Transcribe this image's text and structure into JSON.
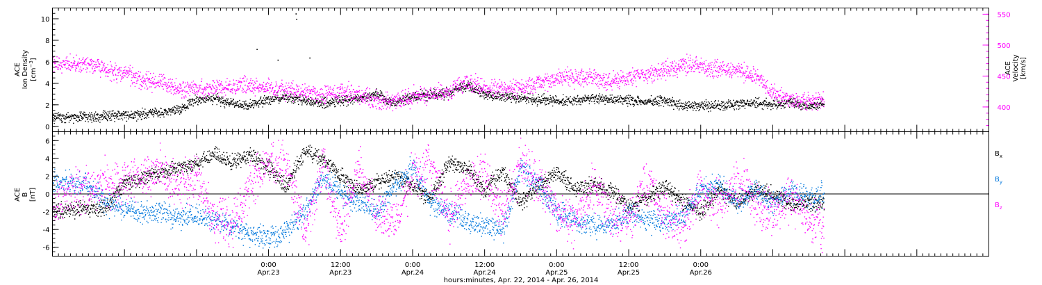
{
  "chart_data": [
    {
      "type": "scatter",
      "panel": "top",
      "y_left": {
        "label_lines": [
          "ACE",
          "Ion Density"
        ],
        "unit_base": "[cm",
        "unit_sup": "−3",
        "unit_end": "]",
        "lim": [
          -0.5,
          11
        ],
        "ticks": [
          0,
          2,
          4,
          6,
          8,
          10
        ],
        "minor_step": 0.5
      },
      "y_right": {
        "label_lines": [
          "ACE",
          "Velocity",
          "[km/s]"
        ],
        "lim": [
          360,
          560
        ],
        "ticks": [
          400,
          450,
          500,
          550
        ],
        "minor_step": 10,
        "color": "#ff00ff"
      },
      "series": [
        {
          "key": "density",
          "axis": "left",
          "color": "#000000",
          "x": [
            -36,
            -33,
            -30,
            -27,
            -24,
            -21,
            -18,
            -15,
            -12,
            -9,
            -6,
            -3,
            0,
            3,
            6,
            9,
            12,
            15,
            18,
            21,
            24,
            27,
            30,
            33,
            36,
            39,
            42,
            45,
            48,
            51,
            54,
            57,
            60,
            63,
            66,
            69,
            72,
            75,
            78,
            81,
            84,
            87,
            90,
            92.5
          ],
          "y": [
            0.9,
            0.9,
            0.9,
            1.0,
            1.1,
            1.2,
            1.3,
            1.6,
            2.5,
            2.6,
            2.1,
            2.0,
            2.5,
            2.7,
            2.4,
            2.2,
            2.4,
            2.6,
            3.0,
            2.2,
            2.8,
            3.0,
            3.1,
            3.9,
            3.0,
            2.8,
            2.7,
            2.5,
            2.4,
            2.5,
            2.6,
            2.6,
            2.5,
            2.3,
            2.4,
            2.0,
            2.0,
            1.9,
            2.1,
            2.2,
            2.1,
            2.3,
            1.8,
            2.2
          ],
          "spread": 0.45
        },
        {
          "key": "velocity",
          "axis": "right",
          "color": "#ff00ff",
          "x": [
            -36,
            -33,
            -30,
            -27,
            -24,
            -21,
            -18,
            -15,
            -12,
            -9,
            -6,
            -3,
            0,
            3,
            6,
            9,
            12,
            15,
            18,
            21,
            24,
            27,
            30,
            33,
            36,
            39,
            42,
            45,
            48,
            51,
            54,
            57,
            60,
            63,
            66,
            69,
            72,
            75,
            78,
            81,
            84,
            87,
            90,
            92.5
          ],
          "y": [
            472,
            470,
            470,
            460,
            455,
            445,
            440,
            430,
            430,
            432,
            434,
            435,
            432,
            428,
            424,
            420,
            425,
            418,
            412,
            410,
            418,
            422,
            425,
            440,
            430,
            430,
            430,
            440,
            445,
            448,
            448,
            440,
            450,
            452,
            460,
            470,
            468,
            462,
            462,
            450,
            425,
            412,
            410,
            412
          ],
          "spread": 14
        }
      ],
      "spikes": [
        {
          "x": 4.5,
          "y": 10.5
        },
        {
          "x": 4.6,
          "y": 10.0
        },
        {
          "x": 1.5,
          "y": 6.2
        },
        {
          "x": 6.8,
          "y": 6.4
        },
        {
          "x": -2.0,
          "y": 7.2
        }
      ]
    },
    {
      "type": "scatter",
      "panel": "bottom",
      "y_left": {
        "label_lines": [
          "ACE",
          "B"
        ],
        "unit": "[nT]",
        "lim": [
          -7,
          7
        ],
        "ticks": [
          -6,
          -4,
          -2,
          0,
          2,
          4,
          6
        ],
        "minor_step": 0.5,
        "zero_line": true
      },
      "legend": [
        {
          "base": "B",
          "sub": "x",
          "color": "#000000"
        },
        {
          "base": "B",
          "sub": "y",
          "color": "#0077dd"
        },
        {
          "base": "B",
          "sub": "z",
          "color": "#ff00ff"
        }
      ],
      "series": [
        {
          "key": "bx",
          "color": "#000000",
          "x": [
            -36,
            -33,
            -30,
            -27,
            -24,
            -21,
            -18,
            -15,
            -12,
            -9,
            -6,
            -3,
            0,
            3,
            6,
            9,
            12,
            15,
            18,
            21,
            24,
            27,
            30,
            33,
            36,
            39,
            42,
            45,
            48,
            51,
            54,
            57,
            60,
            63,
            66,
            69,
            72,
            75,
            78,
            81,
            84,
            87,
            90,
            92.5
          ],
          "y": [
            -2.0,
            -1.8,
            -1.6,
            -1.5,
            1.5,
            1.8,
            2.5,
            3.0,
            3.5,
            4.5,
            3.5,
            4.5,
            3.0,
            1.0,
            5.0,
            4.0,
            2.0,
            0.5,
            1.5,
            2.0,
            1.0,
            -0.5,
            3.5,
            3.0,
            0.5,
            2.5,
            -1.0,
            1.0,
            2.5,
            0.5,
            1.0,
            0.5,
            -1.5,
            -0.5,
            1.0,
            -1.0,
            -2.0,
            0.5,
            -1.0,
            0.5,
            0.0,
            -1.0,
            -1.0,
            -1.0
          ],
          "spread": 0.9
        },
        {
          "key": "by",
          "color": "#0077dd",
          "x": [
            -36,
            -33,
            -30,
            -27,
            -24,
            -21,
            -18,
            -15,
            -12,
            -9,
            -6,
            -3,
            0,
            3,
            6,
            9,
            12,
            15,
            18,
            21,
            24,
            27,
            30,
            33,
            36,
            39,
            42,
            45,
            48,
            51,
            54,
            57,
            60,
            63,
            66,
            69,
            72,
            75,
            78,
            81,
            84,
            87,
            90,
            92.5
          ],
          "y": [
            1.5,
            1.3,
            1.0,
            -1.0,
            -1.5,
            -2.0,
            -2.0,
            -2.5,
            -2.5,
            -3.0,
            -3.5,
            -4.5,
            -5.0,
            -4.0,
            -2.0,
            2.0,
            0.0,
            -1.0,
            -2.0,
            1.0,
            3.0,
            -1.0,
            -2.0,
            -3.0,
            -3.5,
            -4.0,
            3.0,
            1.0,
            -2.0,
            -3.0,
            -3.5,
            -3.5,
            -2.0,
            -3.0,
            -3.0,
            -2.5,
            0.5,
            1.0,
            -1.0,
            0.5,
            -1.0,
            0.5,
            -0.5,
            0.0
          ],
          "spread": 1.2
        },
        {
          "key": "bz",
          "color": "#ff00ff",
          "x": [
            -36,
            -33,
            -30,
            -27,
            -24,
            -21,
            -18,
            -15,
            -12,
            -9,
            -6,
            -3,
            0,
            3,
            6,
            9,
            12,
            15,
            18,
            21,
            24,
            27,
            30,
            33,
            36,
            39,
            42,
            45,
            48,
            51,
            54,
            57,
            60,
            63,
            66,
            69,
            72,
            75,
            78,
            81,
            84,
            87,
            90,
            92.5
          ],
          "y": [
            -1.0,
            0.5,
            1.0,
            1.2,
            1.5,
            2.0,
            2.5,
            1.0,
            2.0,
            -3.0,
            -3.5,
            1.0,
            4.0,
            3.0,
            -4.0,
            3.5,
            -4.0,
            3.0,
            -2.0,
            -3.5,
            2.0,
            3.0,
            -2.5,
            1.5,
            2.0,
            -2.0,
            3.5,
            1.5,
            -2.0,
            -3.5,
            1.0,
            -2.5,
            -3.0,
            1.5,
            -2.5,
            -3.5,
            0.5,
            -1.5,
            1.5,
            -1.0,
            -2.5,
            0.0,
            -3.0,
            -3.5
          ],
          "spread": 2.4
        }
      ]
    }
  ],
  "x_axis": {
    "lim": [
      -36,
      120
    ],
    "ticks": [
      {
        "x": 0,
        "time": "0:00",
        "date": "Apr.23"
      },
      {
        "x": 12,
        "time": "12:00",
        "date": "Apr.23"
      },
      {
        "x": 24,
        "time": "0:00",
        "date": "Apr.24"
      },
      {
        "x": 36,
        "time": "12:00",
        "date": "Apr.24"
      },
      {
        "x": 48,
        "time": "0:00",
        "date": "Apr.25"
      },
      {
        "x": 60,
        "time": "12:00",
        "date": "Apr.25"
      },
      {
        "x": 72,
        "time": "0:00",
        "date": "Apr.26"
      }
    ],
    "minor_step": 1,
    "title": "hours:minutes, Apr. 22, 2014 - Apr. 26, 2014"
  }
}
